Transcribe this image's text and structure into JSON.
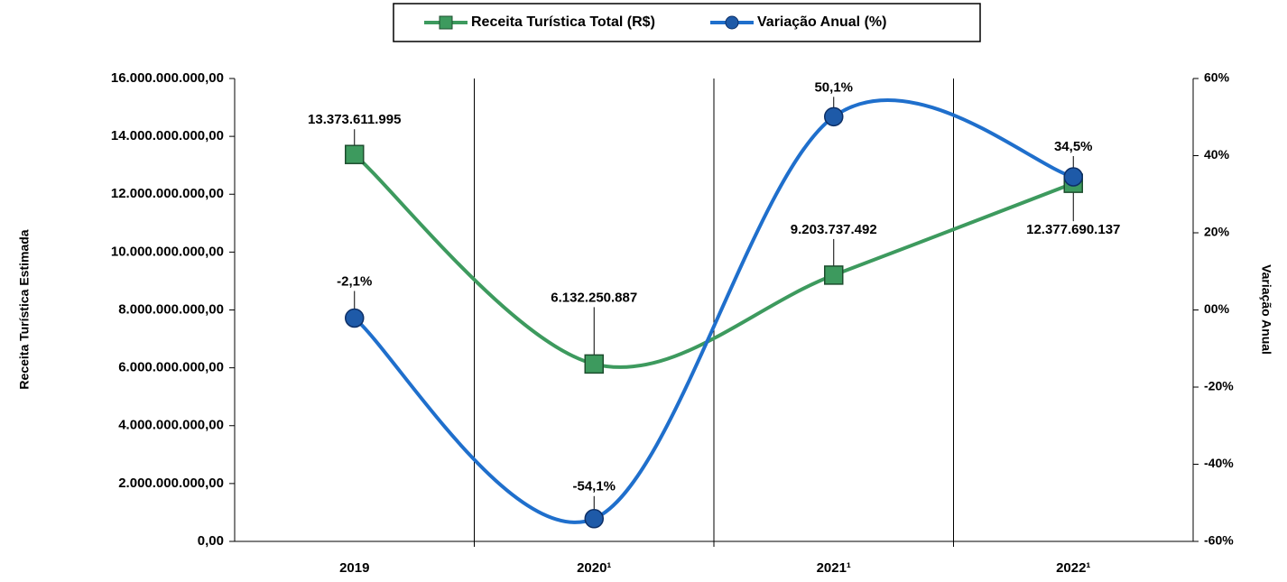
{
  "chart_data": {
    "type": "line",
    "categories": [
      "2019",
      "2020¹",
      "2021¹",
      "2022¹"
    ],
    "y_label": "Receita Turística Estimada",
    "y2_label": "Variação Anual",
    "ylim": [
      0,
      16000000000
    ],
    "yticks": [
      {
        "value": 0,
        "label": "0,00"
      },
      {
        "value": 2000000000,
        "label": "2.000.000.000,00"
      },
      {
        "value": 4000000000,
        "label": "4.000.000.000,00"
      },
      {
        "value": 6000000000,
        "label": "6.000.000.000,00"
      },
      {
        "value": 8000000000,
        "label": "8.000.000.000,00"
      },
      {
        "value": 10000000000,
        "label": "10.000.000.000,00"
      },
      {
        "value": 12000000000,
        "label": "12.000.000.000,00"
      },
      {
        "value": 14000000000,
        "label": "14.000.000.000,00"
      },
      {
        "value": 16000000000,
        "label": "16.000.000.000,00"
      }
    ],
    "y2lim": [
      -60,
      60
    ],
    "y2ticks": [
      {
        "value": -60,
        "label": "-60%"
      },
      {
        "value": -40,
        "label": "-40%"
      },
      {
        "value": -20,
        "label": "-20%"
      },
      {
        "value": 0,
        "label": "00%"
      },
      {
        "value": 20,
        "label": "20%"
      },
      {
        "value": 40,
        "label": "40%"
      },
      {
        "value": 60,
        "label": "60%"
      }
    ],
    "legend": "top",
    "series": [
      {
        "name": "Receita Turística Total (R$)",
        "color": "#3d9a5e",
        "marker": "square",
        "values": [
          13373611995,
          6132250887,
          9203737492,
          12377690137
        ],
        "value_labels": [
          "13.373.611.995",
          "6.132.250.887",
          "9.203.737.492",
          "12.377.690.137"
        ]
      },
      {
        "name": "Variação Anual (%)",
        "color": "#1f6fcc",
        "marker": "circle",
        "axis": "y2",
        "values": [
          -2.1,
          -54.1,
          50.1,
          34.5
        ],
        "value_labels": [
          "-2,1%",
          "-54,1%",
          "50,1%",
          "34,5%"
        ]
      }
    ]
  }
}
